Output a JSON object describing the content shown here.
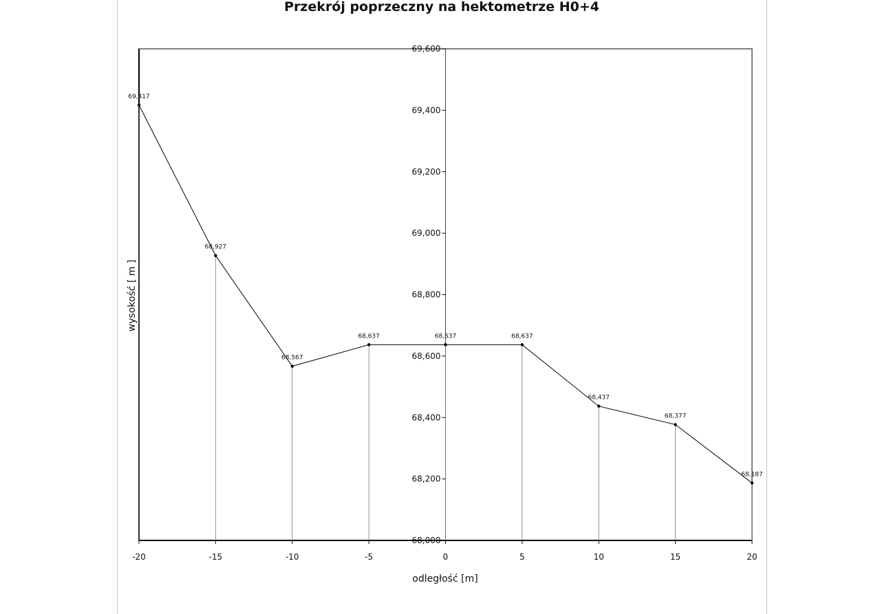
{
  "chart_data": {
    "type": "line",
    "title": "Przekrój poprzeczny na hektometrze H0+4",
    "xlabel": "odległość [m]",
    "ylabel": "wysokość [ m ]",
    "xlim": [
      -20,
      20
    ],
    "ylim": [
      68.0,
      69.6
    ],
    "x_ticks": [
      -20,
      -15,
      -10,
      -5,
      0,
      5,
      10,
      15,
      20
    ],
    "x_tick_labels": [
      "-20",
      "-15",
      "-10",
      "-5",
      "0",
      "5",
      "10",
      "15",
      "20"
    ],
    "y_ticks": [
      68.0,
      68.2,
      68.4,
      68.6,
      68.8,
      69.0,
      69.2,
      69.4,
      69.6
    ],
    "y_tick_labels": [
      "68,000",
      "68,200",
      "68,400",
      "68,600",
      "68,800",
      "69,000",
      "69,200",
      "69,400",
      "69,600"
    ],
    "x": [
      -20,
      -15,
      -10,
      -5,
      0,
      5,
      10,
      15,
      20
    ],
    "y": [
      69.417,
      68.927,
      68.567,
      68.637,
      68.637,
      68.637,
      68.437,
      68.377,
      68.187
    ],
    "data_labels": [
      "69,417",
      "68,927",
      "68,567",
      "68,637",
      "68,637",
      "68,637",
      "68,437",
      "68,377",
      "68,187"
    ],
    "grid": false,
    "drop_lines": true,
    "line_color": "#000000",
    "frame_color": "#555555"
  }
}
